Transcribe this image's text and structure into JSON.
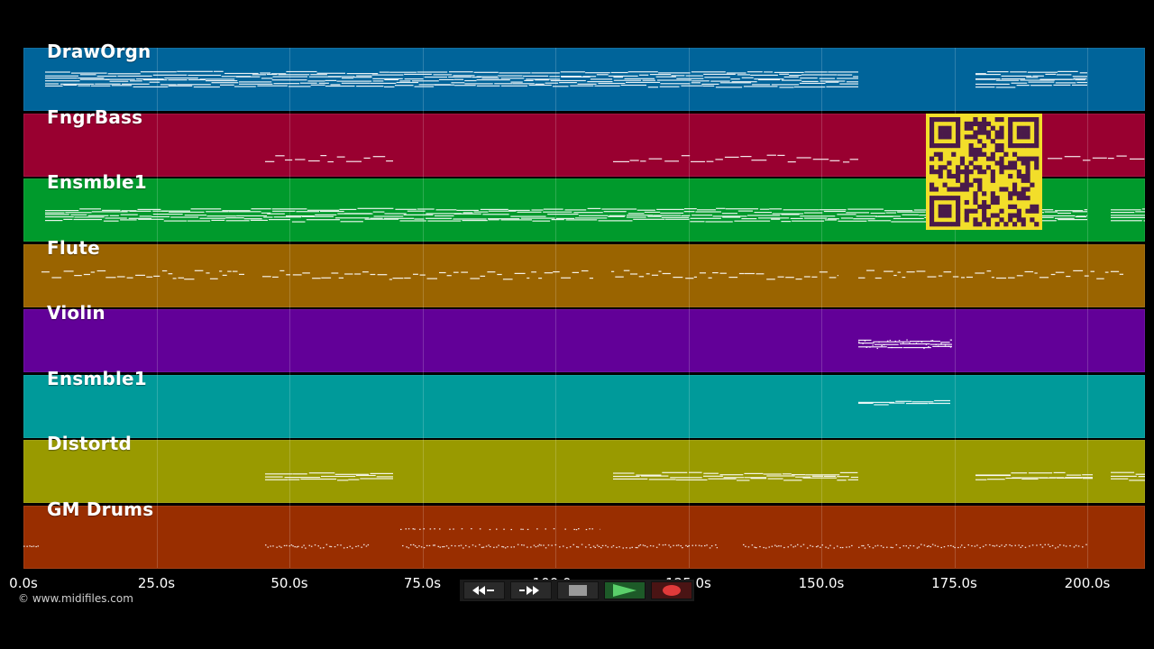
{
  "tracks": [
    {
      "label": "DrawOrgn",
      "color": "#00649a"
    },
    {
      "label": "FngrBass",
      "color": "#990030"
    },
    {
      "label": "Ensmble1",
      "color": "#009a2c"
    },
    {
      "label": "Flute",
      "color": "#9a6400"
    },
    {
      "label": "Violin",
      "color": "#620098"
    },
    {
      "label": "Ensmble1",
      "color": "#009a9a"
    },
    {
      "label": "Distortd",
      "color": "#999a00"
    },
    {
      "label": "GM Drums",
      "color": "#992e00"
    }
  ],
  "time_axis": {
    "ticks": [
      "0.0s",
      "25.0s",
      "50.0s",
      "75.0s",
      "100.0s",
      "125.0s",
      "150.0s",
      "175.0s",
      "200.0s"
    ],
    "tick_seconds": [
      0,
      25,
      50,
      75,
      100,
      125,
      150,
      175,
      200
    ]
  },
  "copyright": "© www.midifiles.com",
  "transport": {
    "buttons": [
      {
        "name": "rewind-button",
        "icon": "rewind-icon"
      },
      {
        "name": "fast-forward-button",
        "icon": "fast-forward-icon"
      },
      {
        "name": "stop-button",
        "icon": "stop-icon"
      },
      {
        "name": "play-button",
        "icon": "play-icon"
      },
      {
        "name": "record-button",
        "icon": "record-icon"
      }
    ]
  },
  "qr_code": {
    "icon": "qr-code-icon",
    "background": "#f2de2a",
    "foreground": "#4a1a4a"
  }
}
